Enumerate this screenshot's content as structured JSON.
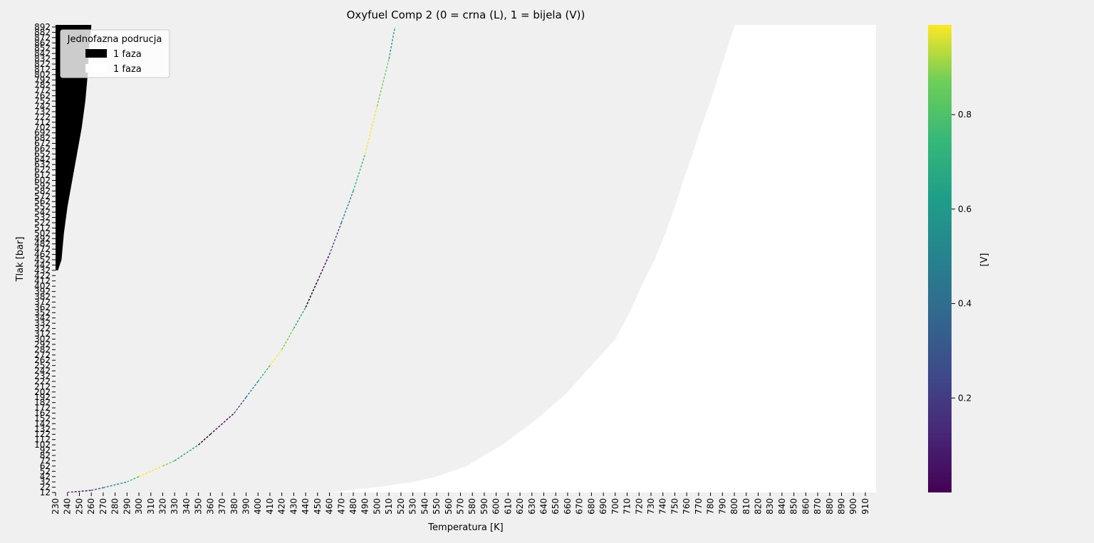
{
  "chart_data": {
    "type": "heatmap",
    "title": "Oxyfuel Comp 2 (0 = crna (L), 1 = bijela (V))",
    "xlabel": "Temperatura [K]",
    "ylabel": "Tlak [bar]",
    "x_ticks": [
      230,
      240,
      250,
      260,
      270,
      280,
      290,
      300,
      310,
      320,
      330,
      340,
      350,
      360,
      370,
      380,
      390,
      400,
      410,
      420,
      430,
      440,
      450,
      460,
      470,
      480,
      490,
      500,
      510,
      520,
      530,
      540,
      550,
      560,
      570,
      580,
      590,
      600,
      610,
      620,
      630,
      640,
      650,
      660,
      670,
      680,
      690,
      700,
      710,
      720,
      730,
      740,
      750,
      760,
      770,
      780,
      790,
      800,
      810,
      820,
      830,
      840,
      850,
      860,
      870,
      880,
      890,
      900,
      910
    ],
    "y_ticks": [
      12,
      22,
      32,
      42,
      52,
      62,
      72,
      82,
      92,
      102,
      112,
      122,
      132,
      142,
      152,
      162,
      172,
      182,
      192,
      202,
      212,
      222,
      232,
      242,
      252,
      262,
      272,
      282,
      292,
      302,
      312,
      322,
      332,
      342,
      352,
      362,
      372,
      382,
      392,
      402,
      412,
      422,
      432,
      442,
      452,
      462,
      472,
      482,
      492,
      502,
      512,
      522,
      532,
      542,
      552,
      562,
      572,
      582,
      592,
      602,
      612,
      622,
      632,
      642,
      652,
      662,
      672,
      682,
      692,
      702,
      712,
      722,
      732,
      742,
      752,
      762,
      772,
      782,
      792,
      802,
      812,
      822,
      832,
      842,
      852,
      862,
      872,
      882,
      892
    ],
    "xlim": [
      230,
      919
    ],
    "ylim": [
      12,
      896
    ],
    "colorbar": {
      "label": "[V]",
      "colormap": "viridis",
      "range": [
        0,
        0.99
      ],
      "ticks": [
        0.2,
        0.4,
        0.6,
        0.8
      ],
      "tick_labels": [
        "0.2",
        "0.4",
        "0.6",
        "0.8"
      ]
    },
    "legend": {
      "title": "Jednofazna podrucja",
      "placement": "top-left",
      "entries": [
        {
          "label": "1 faza",
          "color": "#000000"
        },
        {
          "label": "1 faza",
          "color": "#ffffff"
        }
      ]
    },
    "regions": {
      "liquid_L_black": {
        "color": "#000000",
        "pressure_from": 432,
        "boundary_T_at_p": [
          [
            432,
            232
          ],
          [
            452,
            235
          ],
          [
            502,
            237
          ],
          [
            552,
            240
          ],
          [
            602,
            244
          ],
          [
            652,
            248
          ],
          [
            702,
            252
          ],
          [
            752,
            255
          ],
          [
            802,
            257
          ],
          [
            852,
            258
          ],
          [
            892,
            260
          ]
        ]
      },
      "vapor_V_white": {
        "color": "#ffffff",
        "boundary_T_at_p": [
          [
            12,
            460
          ],
          [
            22,
            500
          ],
          [
            32,
            530
          ],
          [
            42,
            550
          ],
          [
            62,
            575
          ],
          [
            102,
            605
          ],
          [
            152,
            635
          ],
          [
            202,
            660
          ],
          [
            252,
            680
          ],
          [
            302,
            700
          ],
          [
            352,
            712
          ],
          [
            402,
            722
          ],
          [
            452,
            733
          ],
          [
            502,
            742
          ],
          [
            552,
            750
          ],
          [
            602,
            757
          ],
          [
            652,
            765
          ],
          [
            702,
            772
          ],
          [
            752,
            780
          ],
          [
            802,
            787
          ],
          [
            852,
            794
          ],
          [
            892,
            800
          ]
        ]
      },
      "two_phase_edge_line": {
        "colormap": "viridis",
        "points_T_p": [
          [
            240,
            12
          ],
          [
            260,
            16
          ],
          [
            270,
            21
          ],
          [
            290,
            32
          ],
          [
            300,
            42
          ],
          [
            320,
            62
          ],
          [
            330,
            72
          ],
          [
            350,
            102
          ],
          [
            360,
            122
          ],
          [
            380,
            162
          ],
          [
            390,
            192
          ],
          [
            400,
            222
          ],
          [
            410,
            252
          ],
          [
            420,
            282
          ],
          [
            430,
            322
          ],
          [
            440,
            362
          ],
          [
            450,
            412
          ],
          [
            460,
            462
          ],
          [
            470,
            522
          ],
          [
            480,
            582
          ],
          [
            490,
            652
          ],
          [
            500,
            742
          ],
          [
            510,
            832
          ],
          [
            515,
            892
          ]
        ]
      }
    }
  }
}
